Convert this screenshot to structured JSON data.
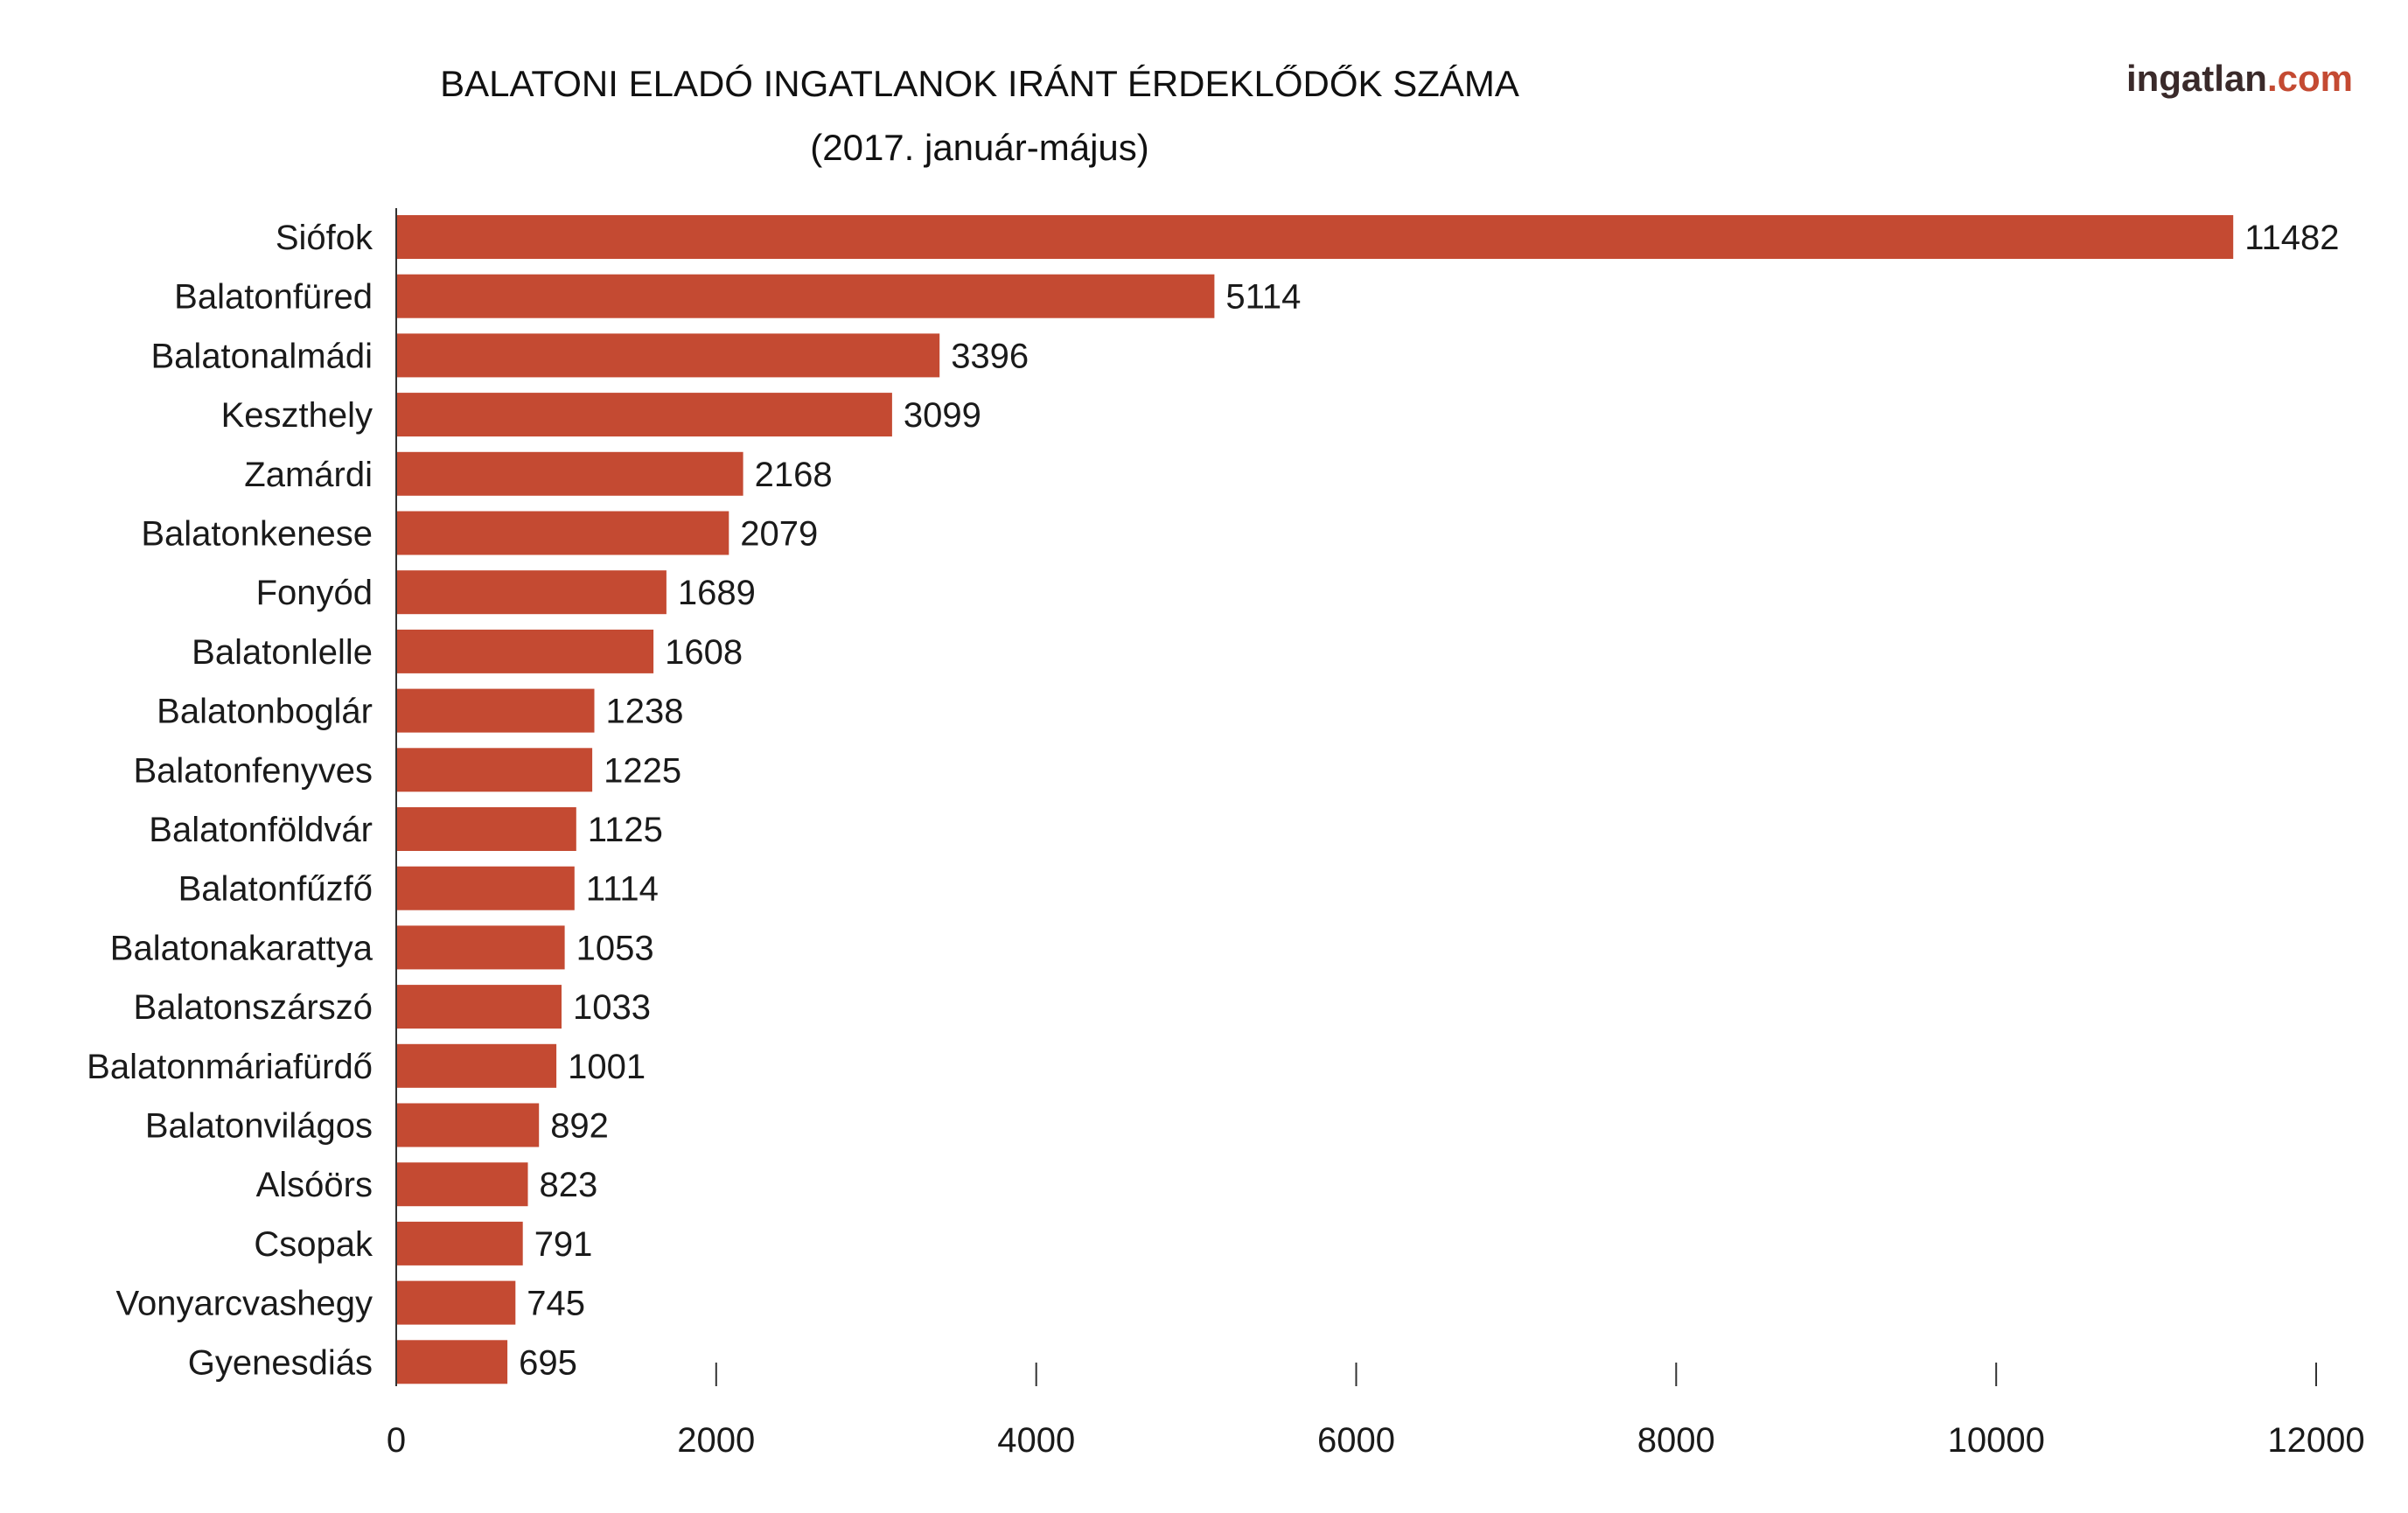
{
  "brand": {
    "name": "ingatlan",
    "suffix": ".com",
    "color_name": "#3a2a2a",
    "color_suffix": "#c44a32"
  },
  "chart_data": {
    "type": "bar",
    "orientation": "horizontal",
    "title": "BALATONI ELADÓ INGATLANOK IRÁNT ÉRDEKLŐDŐK SZÁMA",
    "subtitle": "(2017. január-május)",
    "xlabel": "",
    "ylabel": "",
    "xlim": [
      0,
      12000
    ],
    "xticks": [
      0,
      2000,
      4000,
      6000,
      8000,
      10000,
      12000
    ],
    "grid": false,
    "bar_color": "#c44a32",
    "categories": [
      "Siófok",
      "Balatonfüred",
      "Balatonalmádi",
      "Keszthely",
      "Zamárdi",
      "Balatonkenese",
      "Fonyód",
      "Balatonlelle",
      "Balatonboglár",
      "Balatonfenyves",
      "Balatonföldvár",
      "Balatonfűzfő",
      "Balatonakarattya",
      "Balatonszárszó",
      "Balatonmáriafürdő",
      "Balatonvilágos",
      "Alsóörs",
      "Csopak",
      "Vonyarcvashegy",
      "Gyenesdiás"
    ],
    "values": [
      11482,
      5114,
      3396,
      3099,
      2168,
      2079,
      1689,
      1608,
      1238,
      1225,
      1125,
      1114,
      1053,
      1033,
      1001,
      892,
      823,
      791,
      745,
      695
    ]
  }
}
